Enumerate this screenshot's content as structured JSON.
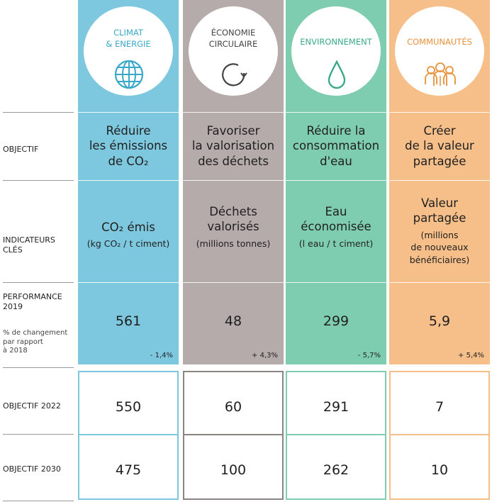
{
  "rows": {
    "objectif": "OBJECTIF",
    "indicateurs": [
      "INDICATEURS",
      "CLÉS"
    ],
    "performance": [
      "PERFORMANCE",
      "2019"
    ],
    "performance_note": [
      "% de changement",
      "par rapport",
      "à 2018"
    ],
    "objectif_2022": "OBJECTIF 2022",
    "objectif_2030": "OBJECTIF 2030"
  },
  "columns": [
    {
      "title": [
        "CLIMAT",
        "& ENERGIE"
      ],
      "icon": "globe-icon",
      "color": "#7ec8df",
      "title_color": "#3aa8c8",
      "objectif": [
        "Réduire",
        "les émissions",
        "de CO₂"
      ],
      "indicator": [
        "CO₂ émis"
      ],
      "indicator_unit": [
        "(kg CO₂ / t ciment)"
      ],
      "performance": "561",
      "change": "- 1,4%",
      "target_2022": "550",
      "target_2030": "475"
    },
    {
      "title": [
        "ÉCONOMIE",
        "CIRCULAIRE"
      ],
      "icon": "circular-arrow-icon",
      "color": "#b5abaa",
      "title_color": "#444444",
      "objectif": [
        "Favoriser",
        "la valorisation",
        "des déchets"
      ],
      "indicator": [
        "Déchets",
        "valorisés"
      ],
      "indicator_unit": [
        "(millions tonnes)"
      ],
      "performance": "48",
      "change": "+ 4,3%",
      "target_2022": "60",
      "target_2030": "100"
    },
    {
      "title": [
        "ENVIRONNEMENT"
      ],
      "icon": "water-drop-icon",
      "color": "#7fcdb0",
      "title_color": "#3aaa8a",
      "objectif": [
        "Réduire la",
        "consommation",
        "d'eau"
      ],
      "indicator": [
        "Eau",
        "économisée"
      ],
      "indicator_unit": [
        "(l eau / t ciment)"
      ],
      "performance": "299",
      "change": "- 5,7%",
      "target_2022": "291",
      "target_2030": "262"
    },
    {
      "title": [
        "COMMUNAUTÉS"
      ],
      "icon": "people-icon",
      "color": "#f6bf8a",
      "title_color": "#e8913a",
      "objectif": [
        "Créer",
        "de la valeur",
        "partagée"
      ],
      "indicator": [
        "Valeur",
        "partagée"
      ],
      "indicator_unit": [
        "(millions",
        "de nouveaux",
        "bénéficiaires)"
      ],
      "performance": "5,9",
      "change": "+ 5,4%",
      "target_2022": "7",
      "target_2030": "10"
    }
  ]
}
